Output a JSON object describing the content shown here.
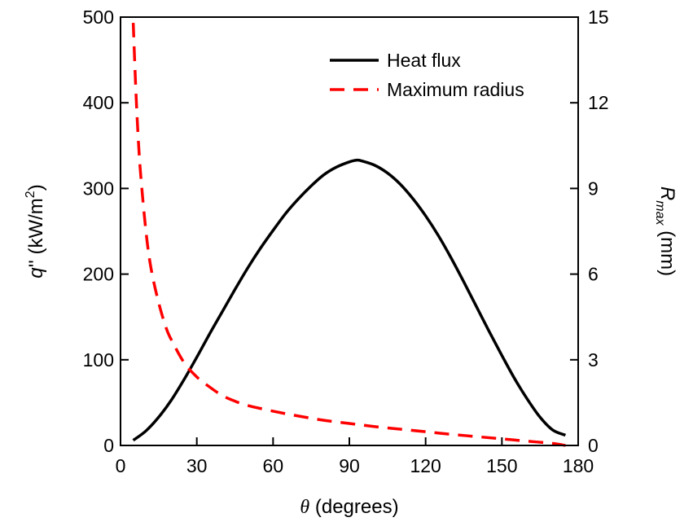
{
  "chart_data": {
    "type": "line",
    "xlabel": {
      "symbol": "θ",
      "text": " (degrees)"
    },
    "ylabel_left": {
      "symbol": "q",
      "text": "'' (kW/m",
      "sup": "2",
      "close": ")"
    },
    "ylabel_right": {
      "symbol": "R",
      "sub": "max",
      "text": " (mm)"
    },
    "xlim": [
      0,
      180
    ],
    "ylim_left": [
      0,
      500
    ],
    "ylim_right": [
      0,
      15
    ],
    "xticks": [
      0,
      30,
      60,
      90,
      120,
      150,
      180
    ],
    "yticks_left": [
      0,
      100,
      200,
      300,
      400,
      500
    ],
    "yticks_right": [
      0,
      3,
      6,
      9,
      12,
      15
    ],
    "legend": {
      "position": "top-right"
    },
    "series": [
      {
        "name": "Heat flux",
        "axis": "left",
        "style": "solid",
        "color": "#000000",
        "x": [
          5,
          10,
          15,
          20,
          25,
          30,
          35,
          40,
          45,
          50,
          55,
          60,
          65,
          70,
          75,
          80,
          85,
          90,
          93,
          95,
          100,
          105,
          110,
          115,
          120,
          125,
          130,
          135,
          140,
          145,
          150,
          155,
          160,
          165,
          170,
          175
        ],
        "y": [
          6,
          17,
          33,
          53,
          77,
          103,
          130,
          156,
          182,
          207,
          230,
          251,
          271,
          288,
          303,
          316,
          325,
          331,
          333,
          332,
          327,
          318,
          305,
          288,
          268,
          245,
          219,
          191,
          162,
          133,
          105,
          78,
          54,
          33,
          18,
          12
        ]
      },
      {
        "name": "Maximum radius",
        "axis": "right",
        "style": "dashed",
        "color": "#ff0000",
        "x": [
          5,
          6,
          7,
          8,
          10,
          12,
          15,
          18,
          20,
          25,
          30,
          35,
          40,
          45,
          50,
          60,
          70,
          80,
          90,
          100,
          110,
          120,
          130,
          140,
          150,
          160,
          170,
          175
        ],
        "y": [
          14.8,
          12.5,
          10.7,
          9.4,
          7.5,
          6.2,
          5.0,
          4.1,
          3.7,
          2.9,
          2.4,
          2.05,
          1.75,
          1.55,
          1.4,
          1.2,
          1.03,
          0.88,
          0.77,
          0.66,
          0.57,
          0.48,
          0.39,
          0.31,
          0.23,
          0.15,
          0.07,
          0.0
        ]
      }
    ]
  }
}
